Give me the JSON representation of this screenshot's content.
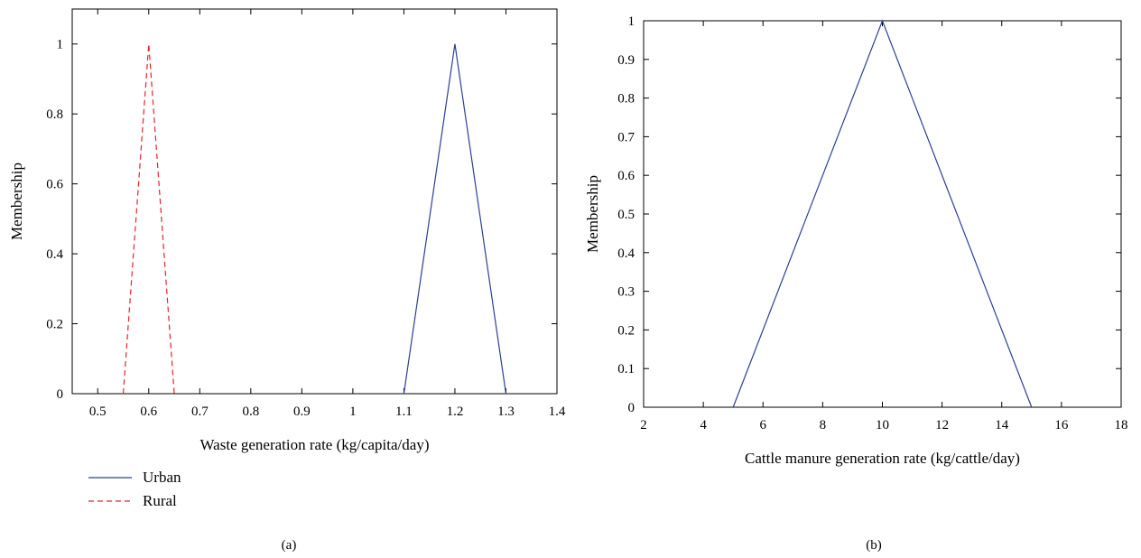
{
  "chart_data": [
    {
      "type": "line",
      "panel_label": "(a)",
      "title": "",
      "xlabel": "Waste generation rate (kg/capita/day)",
      "ylabel": "Membership",
      "xlim": [
        0.45,
        1.4
      ],
      "ylim": [
        0,
        1.1
      ],
      "xticks": [
        0.5,
        0.6,
        0.7,
        0.8,
        0.9,
        1,
        1.1,
        1.2,
        1.3,
        1.4
      ],
      "xtick_labels": [
        "0.5",
        "0.6",
        "0.7",
        "0.8",
        "0.9",
        "1",
        "1.1",
        "1.2",
        "1.3",
        "1.4"
      ],
      "yticks": [
        0,
        0.2,
        0.4,
        0.6,
        0.8,
        1
      ],
      "ytick_labels": [
        "0",
        "0.2",
        "0.4",
        "0.6",
        "0.8",
        "1"
      ],
      "grid": false,
      "legend_position": "below",
      "series": [
        {
          "name": "Urban",
          "color": "#2b3f96",
          "dash": "solid",
          "x": [
            1.1,
            1.2,
            1.3
          ],
          "y": [
            0,
            1,
            0
          ]
        },
        {
          "name": "Rural",
          "color": "#e8232a",
          "dash": "dashed",
          "x": [
            0.55,
            0.6,
            0.65
          ],
          "y": [
            0,
            1,
            0
          ]
        }
      ]
    },
    {
      "type": "line",
      "panel_label": "(b)",
      "title": "",
      "xlabel": "Cattle manure generation rate (kg/cattle/day)",
      "ylabel": "Membership",
      "xlim": [
        2,
        18
      ],
      "ylim": [
        0,
        1
      ],
      "xticks": [
        2,
        4,
        6,
        8,
        10,
        12,
        14,
        16,
        18
      ],
      "xtick_labels": [
        "2",
        "4",
        "6",
        "8",
        "10",
        "12",
        "14",
        "16",
        "18"
      ],
      "yticks": [
        0,
        0.1,
        0.2,
        0.3,
        0.4,
        0.5,
        0.6,
        0.7,
        0.8,
        0.9,
        1
      ],
      "ytick_labels": [
        "0",
        "0.1",
        "0.2",
        "0.3",
        "0.4",
        "0.5",
        "0.6",
        "0.7",
        "0.8",
        "0.9",
        "1"
      ],
      "grid": false,
      "legend_position": "none",
      "series": [
        {
          "color": "#2b3f96",
          "dash": "solid",
          "x": [
            5,
            10,
            15
          ],
          "y": [
            0,
            1,
            0
          ]
        }
      ]
    }
  ]
}
